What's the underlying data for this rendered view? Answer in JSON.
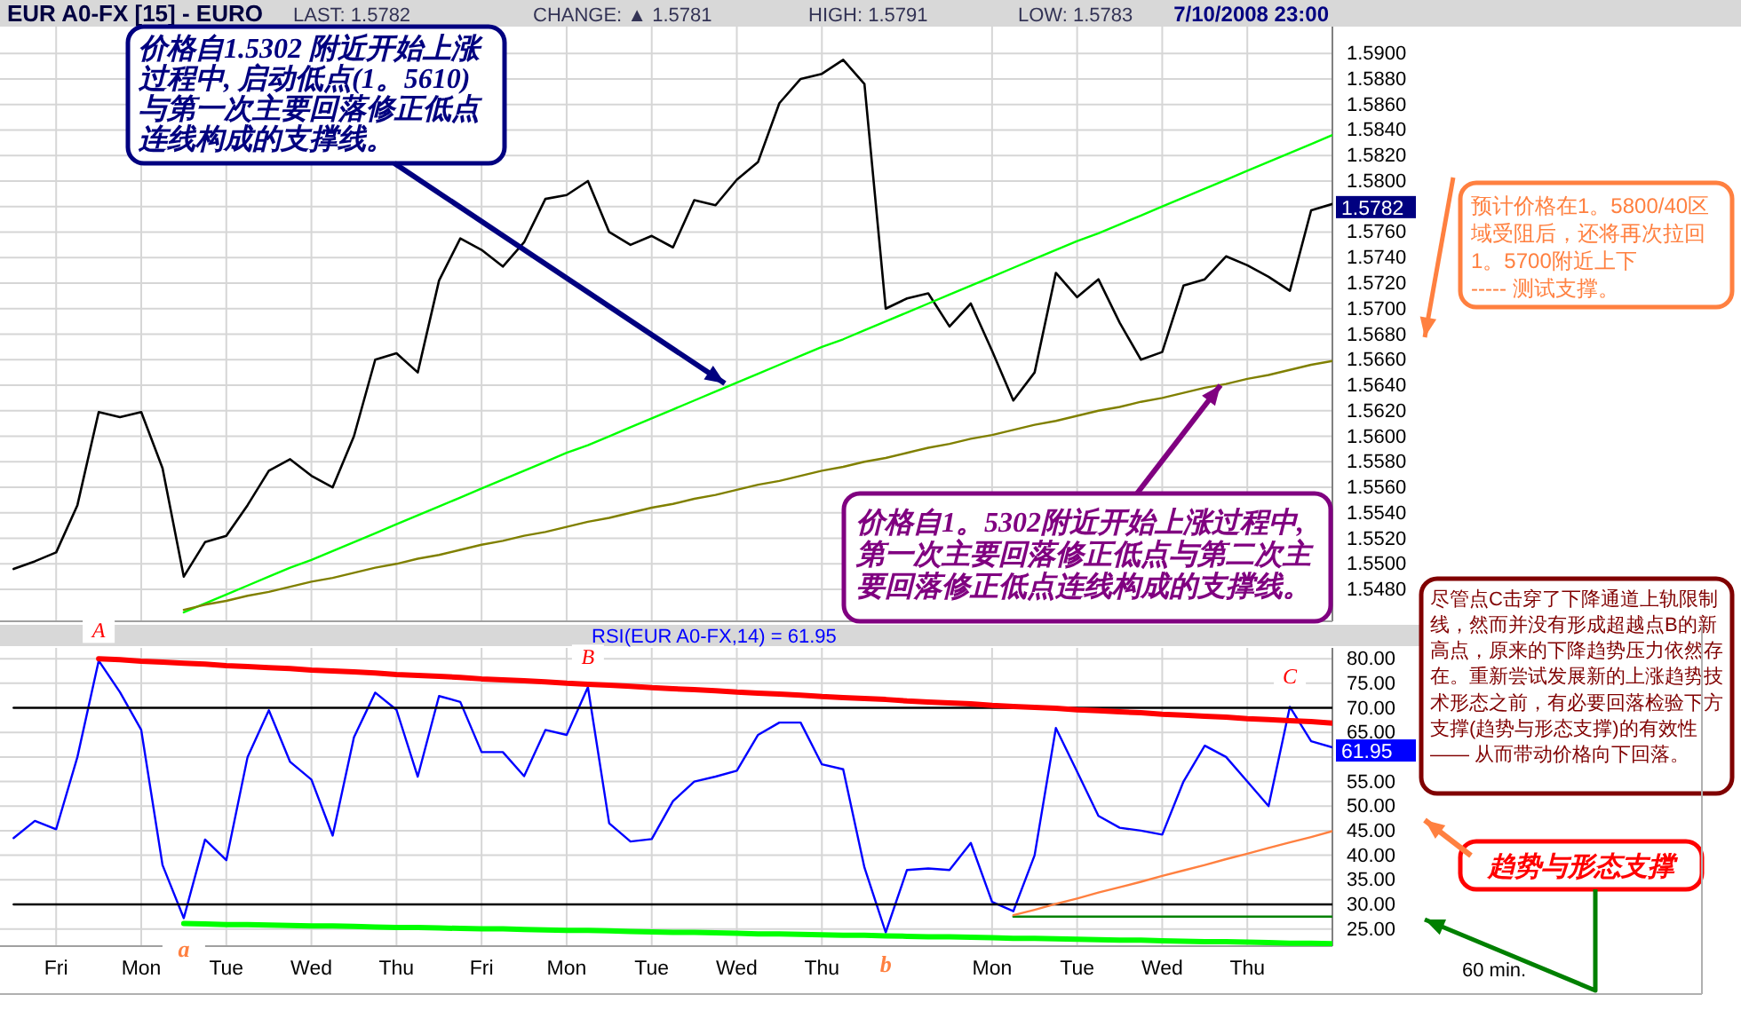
{
  "chart_data": [
    {
      "type": "line",
      "title": "EUR A0-FX [15] - EURO",
      "annotations": [
        "LAST: 1.5782",
        "CHANGE: ▲ 1.5781",
        "HIGH: 1.5791",
        "LOW: 1.5783",
        "7/10/2008 23:00",
        "价格自1.5302 附近开始上涨过程中, 启动低点(1。5610)与第一次主要回落修正低点连线构成的支撑线。",
        "价格自1。5302附近开始上涨过程中,第一次主要回落修正低点与第二次主要回落修正低点连线构成的支撑线。",
        "预计价格在1。5800/40区域受阻后，还将再次拉回1。5700附近上下\n----- 测试支撑。",
        "1.5782"
      ],
      "categories": [
        null,
        null,
        null,
        null,
        null,
        null,
        null,
        null,
        null,
        null,
        null,
        null,
        null,
        null,
        null,
        null,
        null,
        null,
        null,
        null,
        null,
        null,
        null,
        null,
        null,
        null,
        null,
        null,
        null,
        null,
        null,
        null,
        null,
        null,
        null,
        null,
        null,
        null,
        null,
        null,
        null,
        null,
        null,
        null,
        null,
        null,
        null,
        null,
        null,
        null,
        null,
        null,
        null,
        null,
        null,
        null,
        null,
        null,
        null,
        null,
        null,
        null,
        null
      ],
      "ylim": [
        1.5455,
        1.5921
      ],
      "yticks": [
        {
          "value": 1.548,
          "label": "1.5480"
        },
        {
          "value": 1.55,
          "label": "1.5500"
        },
        {
          "value": 1.552,
          "label": "1.5520"
        },
        {
          "value": 1.554,
          "label": "1.5540"
        },
        {
          "value": 1.556,
          "label": "1.5560"
        },
        {
          "value": 1.558,
          "label": "1.5580"
        },
        {
          "value": 1.56,
          "label": "1.5600"
        },
        {
          "value": 1.562,
          "label": "1.5620"
        },
        {
          "value": 1.564,
          "label": "1.5640"
        },
        {
          "value": 1.566,
          "label": "1.5660"
        },
        {
          "value": 1.568,
          "label": "1.5680"
        },
        {
          "value": 1.57,
          "label": "1.5700"
        },
        {
          "value": 1.572,
          "label": "1.5720"
        },
        {
          "value": 1.574,
          "label": "1.5740"
        },
        {
          "value": 1.576,
          "label": "1.5760"
        },
        {
          "value": 1.578,
          "label": null
        },
        {
          "value": 1.58,
          "label": "1.5800"
        },
        {
          "value": 1.582,
          "label": "1.5820"
        },
        {
          "value": 1.584,
          "label": "1.5840"
        },
        {
          "value": 1.586,
          "label": "1.5860"
        },
        {
          "value": 1.588,
          "label": "1.5880"
        },
        {
          "value": 1.59,
          "label": "1.5900"
        }
      ],
      "grid": true,
      "series": [
        {
          "color": "#000000",
          "values": [
            1.5496,
            1.5502,
            1.5509,
            1.5546,
            1.5619,
            1.5615,
            1.5619,
            1.5575,
            1.549,
            1.5517,
            1.5522,
            1.5546,
            1.5573,
            1.5582,
            1.5569,
            1.556,
            1.56,
            1.566,
            1.5665,
            1.565,
            1.5722,
            1.5755,
            1.5746,
            1.5733,
            1.5752,
            1.5786,
            1.5789,
            1.58,
            1.576,
            1.575,
            1.5757,
            1.5748,
            1.5785,
            1.5781,
            1.5801,
            1.5815,
            1.5861,
            1.588,
            1.5884,
            1.5895,
            1.5876,
            1.57,
            1.5708,
            1.5712,
            1.5686,
            1.5704,
            1.5667,
            1.5628,
            1.565,
            1.5728,
            1.5709,
            1.5723,
            1.5689,
            1.566,
            1.5666,
            1.5718,
            1.5723,
            1.5741,
            1.5734,
            1.5725,
            1.5714,
            1.5777,
            1.5782
          ]
        },
        {
          "color": "#00ff00",
          "values": [
            null,
            null,
            null,
            null,
            null,
            null,
            null,
            null,
            1.5462,
            1.5469,
            1.5476,
            1.5483,
            1.549,
            1.5497,
            1.5503,
            1.551,
            1.5517,
            1.5524,
            1.5531,
            1.5538,
            1.5545,
            1.5552,
            1.5559,
            1.5566,
            1.5573,
            1.558,
            1.5587,
            1.5593,
            1.56,
            1.5607,
            1.5614,
            1.5621,
            1.5628,
            1.5635,
            1.5642,
            1.5649,
            1.5656,
            1.5663,
            1.567,
            1.5676,
            1.5683,
            1.569,
            1.5697,
            1.5704,
            1.5711,
            1.5718,
            1.5725,
            1.5732,
            1.5739,
            1.5746,
            1.5753,
            1.5759,
            1.5766,
            1.5773,
            1.578,
            1.5787,
            1.5794,
            1.5801,
            1.5808,
            1.5815,
            1.5822,
            1.5829,
            1.5836
          ]
        },
        {
          "color": "#808000",
          "values": [
            null,
            null,
            null,
            null,
            null,
            null,
            null,
            null,
            1.5464,
            1.5468,
            1.5471,
            1.5475,
            1.5478,
            1.5482,
            1.5486,
            1.5489,
            1.5493,
            1.5497,
            1.55,
            1.5504,
            1.5507,
            1.5511,
            1.5515,
            1.5518,
            1.5522,
            1.5525,
            1.5529,
            1.5533,
            1.5536,
            1.554,
            1.5544,
            1.5547,
            1.5551,
            1.5554,
            1.5558,
            1.5562,
            1.5565,
            1.5569,
            1.5573,
            1.5576,
            1.558,
            1.5583,
            1.5587,
            1.5591,
            1.5594,
            1.5598,
            1.5601,
            1.5605,
            1.5609,
            1.5612,
            1.5616,
            1.562,
            1.5623,
            1.5627,
            1.563,
            1.5634,
            1.5638,
            1.5641,
            1.5645,
            1.5648,
            1.5652,
            1.5656,
            1.5659
          ]
        }
      ]
    },
    {
      "type": "line",
      "title": "RSI(EUR A0-FX,14) = 61.95",
      "annotations": [
        {
          "text": "A",
          "y": 79.6
        },
        {
          "text": "B",
          "y": 74.2
        },
        {
          "text": "C",
          "y": 70.2
        },
        {
          "text": "a",
          "y": 27.2
        },
        {
          "text": "b",
          "y": 24.3
        },
        "60 min.",
        "尽管点C击穿了下降通道上轨限制线，然而并没有形成超越点B的新高点，原来的下降趋势压力依然存在。重新尝试发展新的上涨趋势技术形态之前，有必要回落检验下方支撑(趋势与形态支撑)的有效性\n—— 从而带动价格向下回落。",
        "趋势与形态支撑",
        "61.95"
      ],
      "categories": [
        null,
        null,
        "Fri",
        null,
        null,
        null,
        "Mon",
        null,
        null,
        null,
        "Tue",
        null,
        null,
        null,
        "Wed",
        null,
        null,
        null,
        "Thu",
        null,
        null,
        null,
        "Fri",
        null,
        null,
        null,
        "Mon",
        null,
        null,
        null,
        "Tue",
        null,
        null,
        null,
        "Wed",
        null,
        null,
        null,
        "Thu",
        null,
        null,
        null,
        null,
        null,
        null,
        null,
        "Mon",
        null,
        null,
        null,
        "Tue",
        null,
        null,
        null,
        "Wed",
        null,
        null,
        null,
        "Thu",
        null,
        null,
        null,
        null
      ],
      "ylim": [
        21.5,
        82.2
      ],
      "yticks": [
        {
          "value": 25,
          "label": "25.00"
        },
        {
          "value": 30,
          "label": "30.00"
        },
        {
          "value": 35,
          "label": "35.00"
        },
        {
          "value": 40,
          "label": "40.00"
        },
        {
          "value": 45,
          "label": "45.00"
        },
        {
          "value": 50,
          "label": "50.00"
        },
        {
          "value": 55,
          "label": "55.00"
        },
        {
          "value": 60,
          "label": null
        },
        {
          "value": 65,
          "label": "65.00"
        },
        {
          "value": 70,
          "label": "70.00"
        },
        {
          "value": 75,
          "label": "75.00"
        },
        {
          "value": 80,
          "label": "80.00"
        }
      ],
      "grid": true,
      "series": [
        {
          "color": "#0000ff",
          "values": [
            43.5,
            47,
            45.3,
            60,
            79.6,
            73.2,
            65.5,
            38,
            27.2,
            43.2,
            39,
            60,
            69.5,
            59,
            55.4,
            44,
            64,
            73.1,
            69.6,
            56,
            72.4,
            71.2,
            61,
            61,
            56.1,
            65.5,
            64.5,
            74.2,
            46.5,
            42.8,
            43.3,
            51,
            55,
            56,
            57.2,
            64.5,
            67,
            67,
            58.5,
            57.5,
            37.5,
            24.3,
            37,
            37.3,
            37,
            42.5,
            30.5,
            28.6,
            40,
            65.9,
            57,
            48,
            45.6,
            45,
            44.2,
            55,
            62.3,
            60,
            55,
            50,
            70.2,
            63.2,
            61.95
          ]
        },
        {
          "color": "#000000",
          "values": [
            70,
            70,
            70,
            70,
            70,
            70,
            70,
            70,
            70,
            70,
            70,
            70,
            70,
            70,
            70,
            70,
            70,
            70,
            70,
            70,
            70,
            70,
            70,
            70,
            70,
            70,
            70,
            70,
            70,
            70,
            70,
            70,
            70,
            70,
            70,
            70,
            70,
            70,
            70,
            70,
            70,
            70,
            70,
            70,
            70,
            70,
            70,
            70,
            70,
            70,
            70,
            70,
            70,
            70,
            70,
            70,
            70,
            70,
            70,
            70,
            70,
            70,
            70
          ]
        },
        {
          "color": "#000000",
          "values": [
            30,
            30,
            30,
            30,
            30,
            30,
            30,
            30,
            30,
            30,
            30,
            30,
            30,
            30,
            30,
            30,
            30,
            30,
            30,
            30,
            30,
            30,
            30,
            30,
            30,
            30,
            30,
            30,
            30,
            30,
            30,
            30,
            30,
            30,
            30,
            30,
            30,
            30,
            30,
            30,
            30,
            30,
            30,
            30,
            30,
            30,
            30,
            30,
            30,
            30,
            30,
            30,
            30,
            30,
            30,
            30,
            30,
            30,
            30,
            30,
            30,
            30,
            30
          ]
        },
        {
          "color": "#ff0000",
          "values": [
            null,
            null,
            null,
            null,
            80,
            79.8,
            79.5,
            79.3,
            79.1,
            78.9,
            78.6,
            78.4,
            78.2,
            78,
            77.7,
            77.5,
            77.3,
            77.1,
            76.8,
            76.6,
            76.4,
            76.2,
            75.9,
            75.7,
            75.5,
            75.3,
            75,
            74.8,
            74.6,
            74.4,
            74.1,
            73.9,
            73.7,
            73.5,
            73.2,
            73,
            72.8,
            72.6,
            72.3,
            72.1,
            71.9,
            71.7,
            71.4,
            71.2,
            71,
            70.8,
            70.5,
            70.3,
            70.1,
            69.9,
            69.6,
            69.4,
            69.2,
            69,
            68.7,
            68.5,
            68.3,
            68.1,
            67.8,
            67.6,
            67.4,
            67.2,
            66.9
          ]
        },
        {
          "color": "#00ff00",
          "values": [
            null,
            null,
            null,
            null,
            null,
            null,
            null,
            null,
            26.1,
            26,
            25.9,
            25.9,
            25.8,
            25.7,
            25.6,
            25.6,
            25.5,
            25.4,
            25.3,
            25.3,
            25.2,
            25.1,
            25,
            25,
            24.9,
            24.8,
            24.7,
            24.7,
            24.6,
            24.5,
            24.4,
            24.3,
            24.3,
            24.2,
            24.1,
            24,
            24,
            23.9,
            23.8,
            23.7,
            23.7,
            23.6,
            23.5,
            23.4,
            23.4,
            23.3,
            23.2,
            23.1,
            23.1,
            23,
            22.9,
            22.8,
            22.7,
            22.7,
            22.6,
            22.5,
            22.4,
            22.4,
            22.3,
            22.2,
            22.1,
            22.1,
            22
          ]
        },
        {
          "color": "#008000",
          "values": [
            null,
            null,
            null,
            null,
            null,
            null,
            null,
            null,
            null,
            null,
            null,
            null,
            null,
            null,
            null,
            null,
            null,
            null,
            null,
            null,
            null,
            null,
            null,
            null,
            null,
            null,
            null,
            null,
            null,
            null,
            null,
            null,
            null,
            null,
            null,
            null,
            null,
            null,
            null,
            null,
            null,
            null,
            null,
            null,
            null,
            null,
            null,
            27.5,
            27.5,
            27.5,
            27.5,
            27.5,
            27.5,
            27.5,
            27.5,
            27.5,
            27.5,
            27.5,
            27.5,
            27.5,
            27.5,
            27.5,
            27.5
          ]
        },
        {
          "color": "#ff8040",
          "values": [
            null,
            null,
            null,
            null,
            null,
            null,
            null,
            null,
            null,
            null,
            null,
            null,
            null,
            null,
            null,
            null,
            null,
            null,
            null,
            null,
            null,
            null,
            null,
            null,
            null,
            null,
            null,
            null,
            null,
            null,
            null,
            null,
            null,
            null,
            null,
            null,
            null,
            null,
            null,
            null,
            null,
            null,
            null,
            null,
            null,
            null,
            null,
            27.8,
            28.9,
            30.1,
            31.2,
            32.4,
            33.5,
            34.6,
            35.8,
            36.9,
            38,
            39.2,
            40.3,
            41.5,
            42.6,
            43.7,
            44.9
          ]
        }
      ]
    }
  ]
}
